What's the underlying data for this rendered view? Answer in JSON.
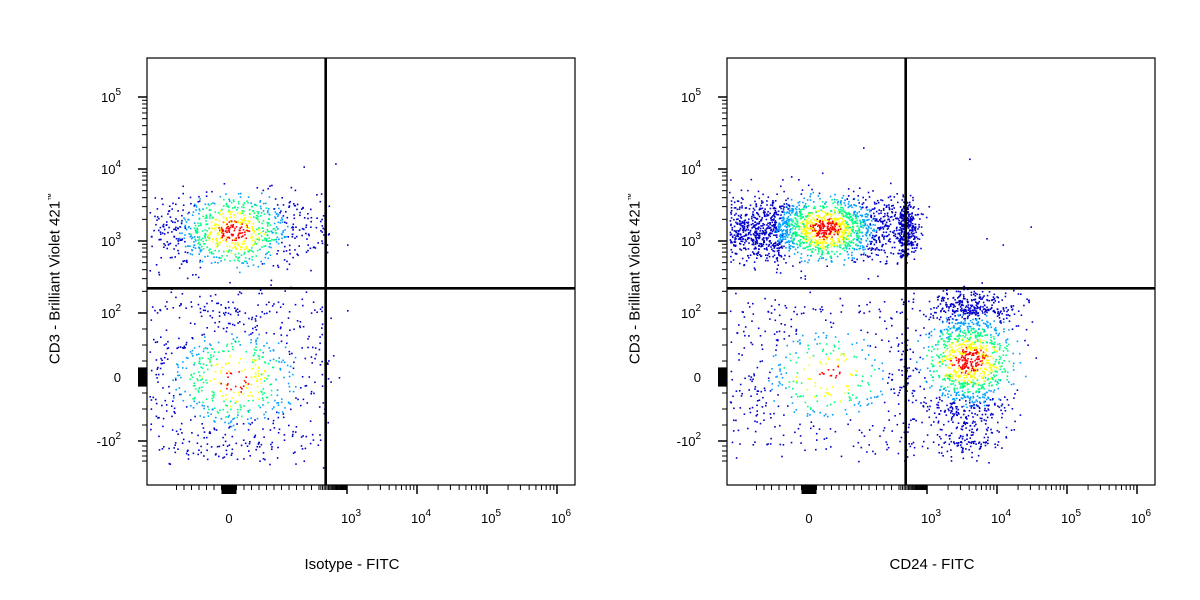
{
  "chart_data": [
    {
      "type": "scatter",
      "subtype": "flow-cytometry density dot plot with quadrant gates",
      "xlabel": "Isotype - FITC",
      "ylabel": "CD3 - Brilliant Violet 421",
      "ylabel_mark": "™",
      "x_scale": "biexponential",
      "y_scale": "biexponential",
      "x_ticks": [
        "0",
        "10^3",
        "10^4",
        "10^5",
        "10^6"
      ],
      "y_ticks": [
        "-10^2",
        "0",
        "10^2",
        "10^3",
        "10^4",
        "10^5"
      ],
      "quadrant_gate": {
        "x": 400,
        "y": 220
      },
      "colormap": [
        "#0000c8",
        "#00a0ff",
        "#00ff80",
        "#ffff00",
        "#ff0000"
      ],
      "populations": [
        {
          "name": "",
          "x_center": 0,
          "x_spread": 150,
          "y_center": 1400,
          "y_spread_decades": 0.26,
          "events": 900
        },
        {
          "name": "",
          "x_center": 0,
          "x_spread": 170,
          "y_center": 0,
          "y_spread": 80,
          "events": 850
        }
      ],
      "stray_events": [
        [
          1000,
          900
        ],
        [
          1000,
          110
        ],
        [
          700,
          0
        ],
        [
          600,
          12000
        ]
      ]
    },
    {
      "type": "scatter",
      "subtype": "flow-cytometry density dot plot with quadrant gates",
      "xlabel": "CD24 - FITC",
      "ylabel": "CD3 - Brilliant Violet 421",
      "ylabel_mark": "™",
      "x_scale": "biexponential",
      "y_scale": "biexponential",
      "x_ticks": [
        "0",
        "10^3",
        "10^4",
        "10^5",
        "10^6"
      ],
      "y_ticks": [
        "-10^2",
        "0",
        "10^2",
        "10^3",
        "10^4",
        "10^5"
      ],
      "quadrant_gate": {
        "x": 400,
        "y": 220
      },
      "colormap": [
        "#0000c8",
        "#00a0ff",
        "#00ff80",
        "#ffff00",
        "#ff0000"
      ],
      "populations": [
        {
          "name": "",
          "x_center": 0,
          "x_spread": 260,
          "y_center": 1500,
          "y_spread_decades": 0.22,
          "events": 2600
        },
        {
          "name": "",
          "x_center": 0,
          "x_spread": 260,
          "y_center": 0,
          "y_spread": 75,
          "events": 650
        },
        {
          "name": "",
          "x_center_decades": 3.6,
          "x_spread_decades": 0.3,
          "y_center": 30,
          "y_spread": 75,
          "events": 1500
        }
      ],
      "stray_events": [
        [
          180,
          20000
        ],
        [
          4000,
          14000
        ],
        [
          30000,
          1600
        ],
        [
          12000,
          900
        ],
        [
          7000,
          1100
        ]
      ]
    }
  ]
}
